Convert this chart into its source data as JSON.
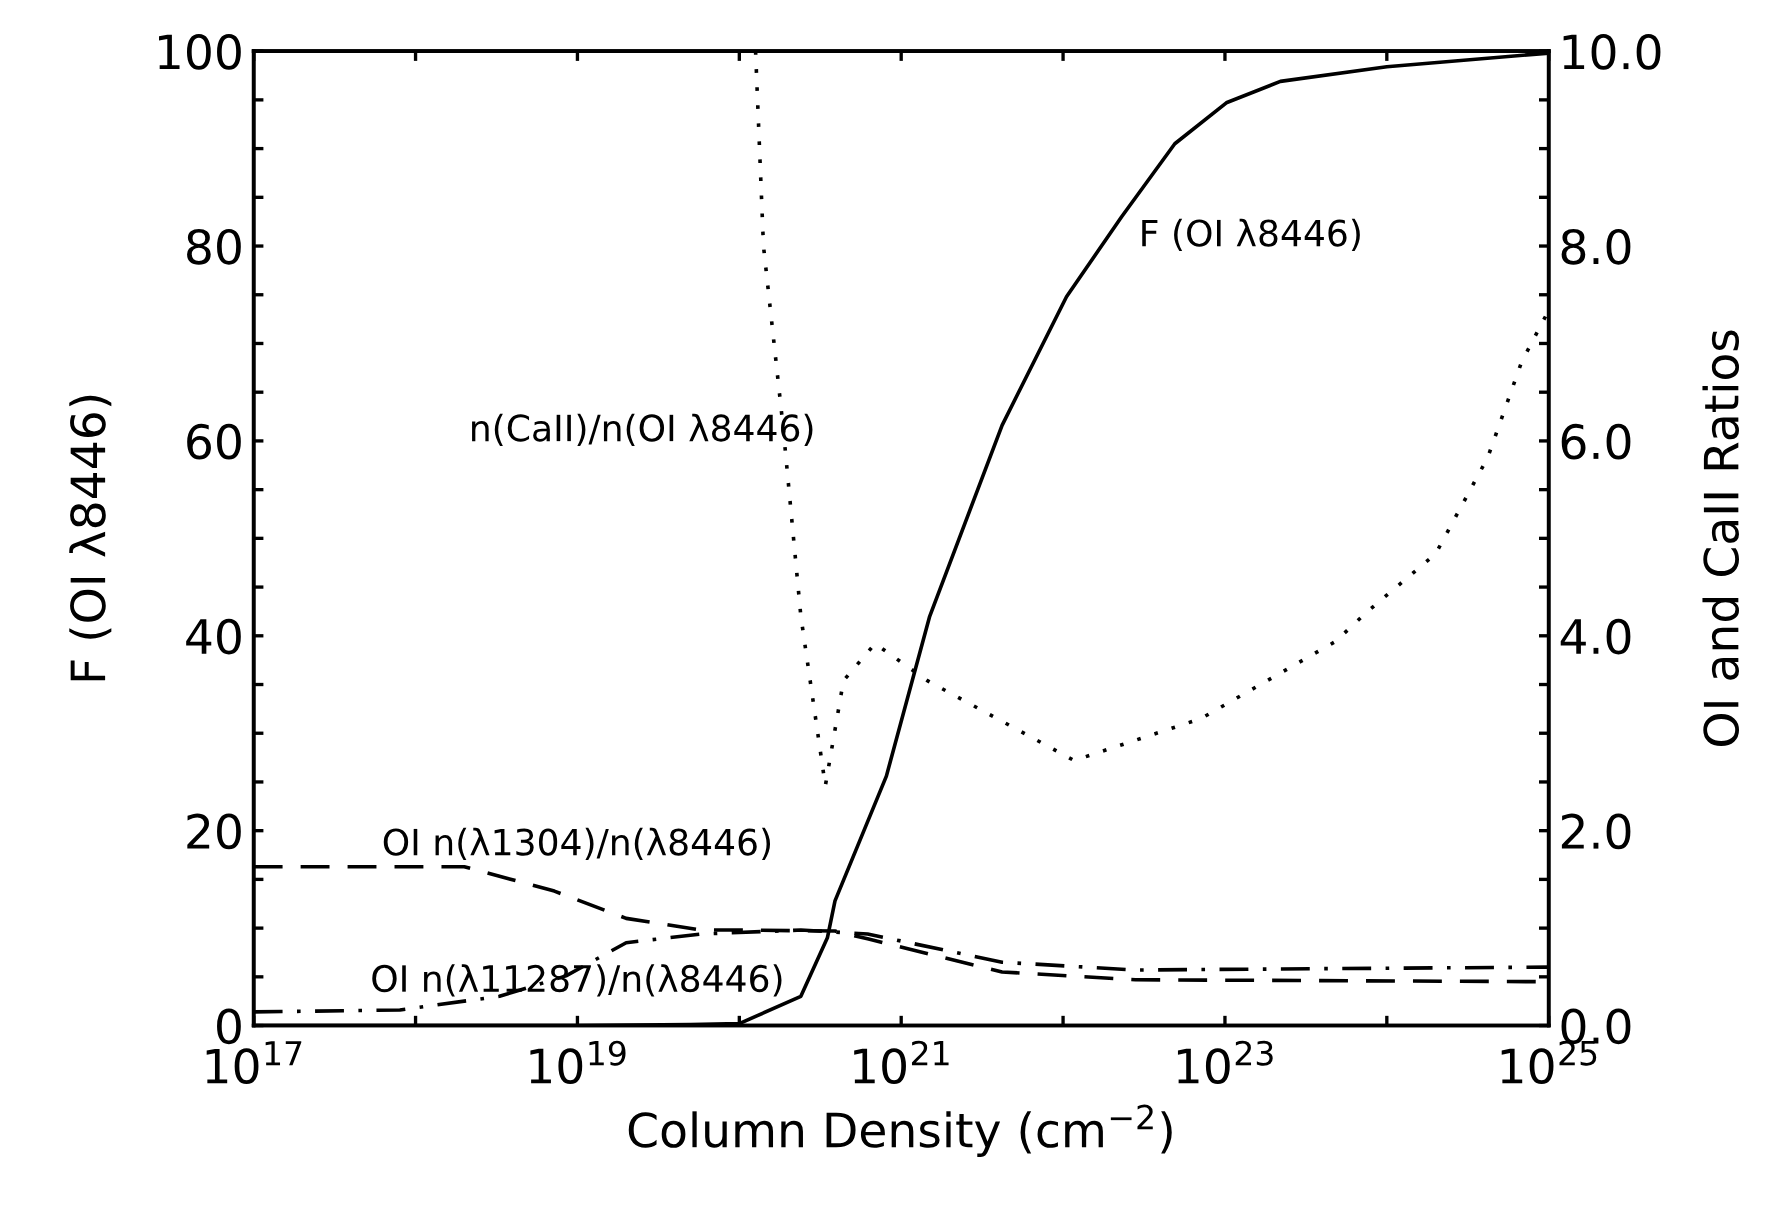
{
  "chart_data": {
    "type": "line",
    "xlabel": "Column Density (cm$^{−2}$)",
    "ylabel": "F (OI λ8446)",
    "y2label": "OI and CaII Ratios",
    "log": "x",
    "grid": false,
    "legend": false,
    "marker": "none",
    "xlim": [
      1e+17,
      1e+25
    ],
    "xticks": [
      {
        "value": 1e+17,
        "label": "10$^{17}$"
      },
      {
        "value": 1e+18,
        "label": null
      },
      {
        "value": 1e+19,
        "label": "10$^{19}$"
      },
      {
        "value": 1e+20,
        "label": null
      },
      {
        "value": 1e+21,
        "label": "10$^{21}$"
      },
      {
        "value": 1e+22,
        "label": null
      },
      {
        "value": 1e+23,
        "label": "10$^{23}$"
      },
      {
        "value": 1e+24,
        "label": null
      },
      {
        "value": 1e+25,
        "label": "10$^{25}$"
      }
    ],
    "ylim": [
      0,
      100
    ],
    "yticks": [
      0,
      {
        "value": 5,
        "label": null
      },
      {
        "value": 10,
        "label": null
      },
      {
        "value": 15,
        "label": null
      },
      20,
      {
        "value": 25,
        "label": null
      },
      {
        "value": 30,
        "label": null
      },
      {
        "value": 35,
        "label": null
      },
      40,
      {
        "value": 45,
        "label": null
      },
      {
        "value": 50,
        "label": null
      },
      {
        "value": 55,
        "label": null
      },
      60,
      {
        "value": 65,
        "label": null
      },
      {
        "value": 70,
        "label": null
      },
      {
        "value": 75,
        "label": null
      },
      80,
      {
        "value": 85,
        "label": null
      },
      {
        "value": 90,
        "label": null
      },
      {
        "value": 95,
        "label": null
      },
      100
    ],
    "y2lim": [
      0,
      10
    ],
    "y2ticks": [
      {
        "value": 0,
        "label": "0.0"
      },
      {
        "value": 0.5,
        "label": null
      },
      {
        "value": 1,
        "label": null
      },
      {
        "value": 1.5,
        "label": null
      },
      {
        "value": 2,
        "label": "2.0"
      },
      {
        "value": 2.5,
        "label": null
      },
      {
        "value": 3,
        "label": null
      },
      {
        "value": 3.5,
        "label": null
      },
      {
        "value": 4,
        "label": "4.0"
      },
      {
        "value": 4.5,
        "label": null
      },
      {
        "value": 5,
        "label": null
      },
      {
        "value": 5.5,
        "label": null
      },
      {
        "value": 6,
        "label": "6.0"
      },
      {
        "value": 6.5,
        "label": null
      },
      {
        "value": 7,
        "label": null
      },
      {
        "value": 7.5,
        "label": null
      },
      {
        "value": 8,
        "label": "8.0"
      },
      {
        "value": 8.5,
        "label": null
      },
      {
        "value": 9,
        "label": null
      },
      {
        "value": 9.5,
        "label": null
      },
      {
        "value": 10,
        "label": "10.0"
      }
    ],
    "series": [
      {
        "color": "#000000",
        "line_style": "solid",
        "x": [
          1e+17,
          1e+19,
          5e+19,
          1e+20,
          2.4e+20,
          3.5e+20,
          3.9e+20,
          8.1e+20,
          1.5e+21,
          4.2e+21,
          1.05e+22,
          2.3e+22,
          4.9e+22,
          1.02e+23,
          2.2e+23,
          1e+24,
          1e+25
        ],
        "values": [
          0,
          0,
          0.1,
          0.2,
          3,
          9,
          12.8,
          25.6,
          42,
          61.6,
          74.8,
          83,
          90.5,
          94.7,
          96.9,
          98.4,
          99.8
        ]
      },
      {
        "color": "#000000",
        "line_style": "dotted",
        "axis": "y2",
        "x": [
          1.26e+20,
          1.3e+20,
          1.41e+20,
          1.86e+20,
          2.4e+20,
          3.4e+20,
          4.4e+20,
          6.9e+20,
          1.45e+21,
          1.17e+22,
          7.1e+22,
          4.8e+23,
          7.6e+23,
          2e+24,
          4.2e+24,
          6.8e+24,
          1e+25
        ],
        "values": [
          10,
          9.45,
          8.0,
          6.16,
          4.2,
          2.46,
          3.54,
          3.92,
          3.54,
          2.72,
          3.15,
          3.94,
          4.25,
          4.84,
          5.83,
          6.81,
          7.34
        ]
      },
      {
        "color": "#000000",
        "line_style": "dashed",
        "axis": "y2",
        "x": [
          1e+17,
          2e+18,
          7.2e+18,
          2e+19,
          5.8e+19,
          1e+20,
          3.9e+20,
          6.2e+20,
          4.2e+21,
          2.8e+22,
          1e+25
        ],
        "values": [
          1.63,
          1.63,
          1.38,
          1.1,
          0.98,
          0.98,
          0.97,
          0.89,
          0.55,
          0.47,
          0.45
        ]
      },
      {
        "color": "#000000",
        "line_style": "dashdot",
        "axis": "y2",
        "x": [
          1e+17,
          8e+17,
          3.3e+18,
          8.5e+18,
          2e+19,
          5.8e+19,
          2.4e+20,
          6.2e+20,
          4.2e+21,
          2.8e+22,
          1e+25
        ],
        "values": [
          0.14,
          0.16,
          0.3,
          0.51,
          0.85,
          0.94,
          0.98,
          0.94,
          0.65,
          0.57,
          0.6
        ]
      }
    ],
    "annotations": [
      "n(CaII)/n(OI λ8446)",
      "F (OI λ8446)",
      "OI n(λ1304)/n(λ8446)",
      "OI n(λ11287)/n(λ8446)"
    ]
  }
}
